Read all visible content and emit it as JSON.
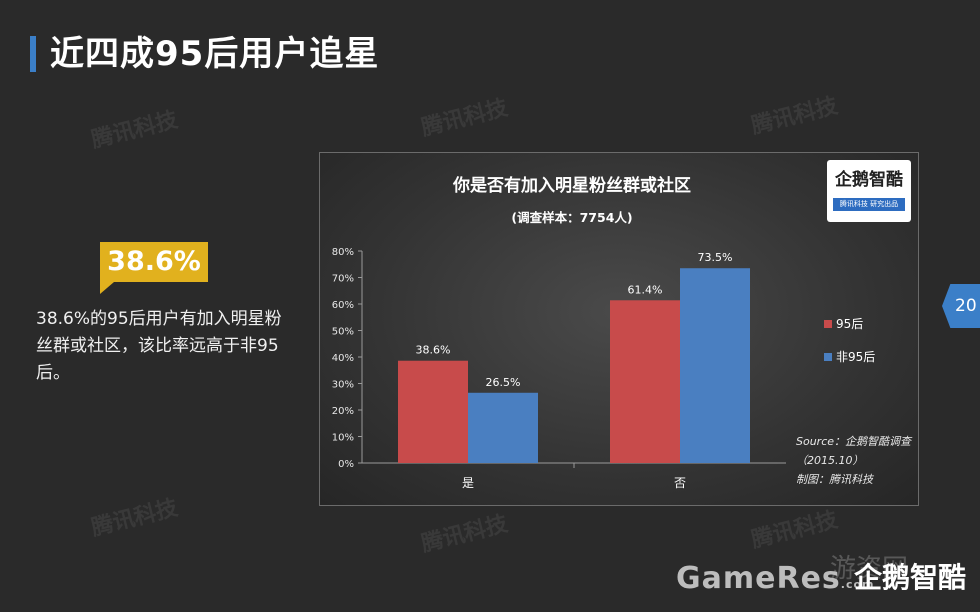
{
  "slide": {
    "title": "近四成95后用户追星",
    "callout": "38.6%",
    "description": "38.6%的95后用户有加入明星粉丝群或社区，该比率远高于非95后。",
    "page_number": "20"
  },
  "watermark": "腾讯科技",
  "logo": {
    "name": "企鹅智酷",
    "sub": "腾讯科技 研究出品"
  },
  "footer": {
    "brand": "GameRes",
    "dotcom": ".com",
    "bg_text": "游资网",
    "name": "企鹅智酷"
  },
  "colors": {
    "accent": "#3b7fc8",
    "callout": "#e1b11e",
    "series_95": "#c84b4b",
    "series_non95": "#4a7fc1"
  },
  "chart_data": {
    "type": "bar",
    "title": "你是否有加入明星粉丝群或社区",
    "subtitle": "(调查样本：7754人)",
    "categories": [
      "是",
      "否"
    ],
    "series": [
      {
        "name": "95后",
        "values": [
          38.6,
          61.4
        ],
        "labels": [
          "38.6%",
          "61.4%"
        ]
      },
      {
        "name": "非95后",
        "values": [
          26.5,
          73.5
        ],
        "labels": [
          "26.5%",
          "73.5%"
        ]
      }
    ],
    "ylim": [
      0,
      80
    ],
    "yticks": [
      "0%",
      "10%",
      "20%",
      "30%",
      "40%",
      "50%",
      "60%",
      "70%",
      "80%"
    ],
    "legend_position": "right",
    "grid": false,
    "source": [
      "Source：企鹅智酷调查",
      "（2015.10）",
      "制图：腾讯科技"
    ]
  }
}
